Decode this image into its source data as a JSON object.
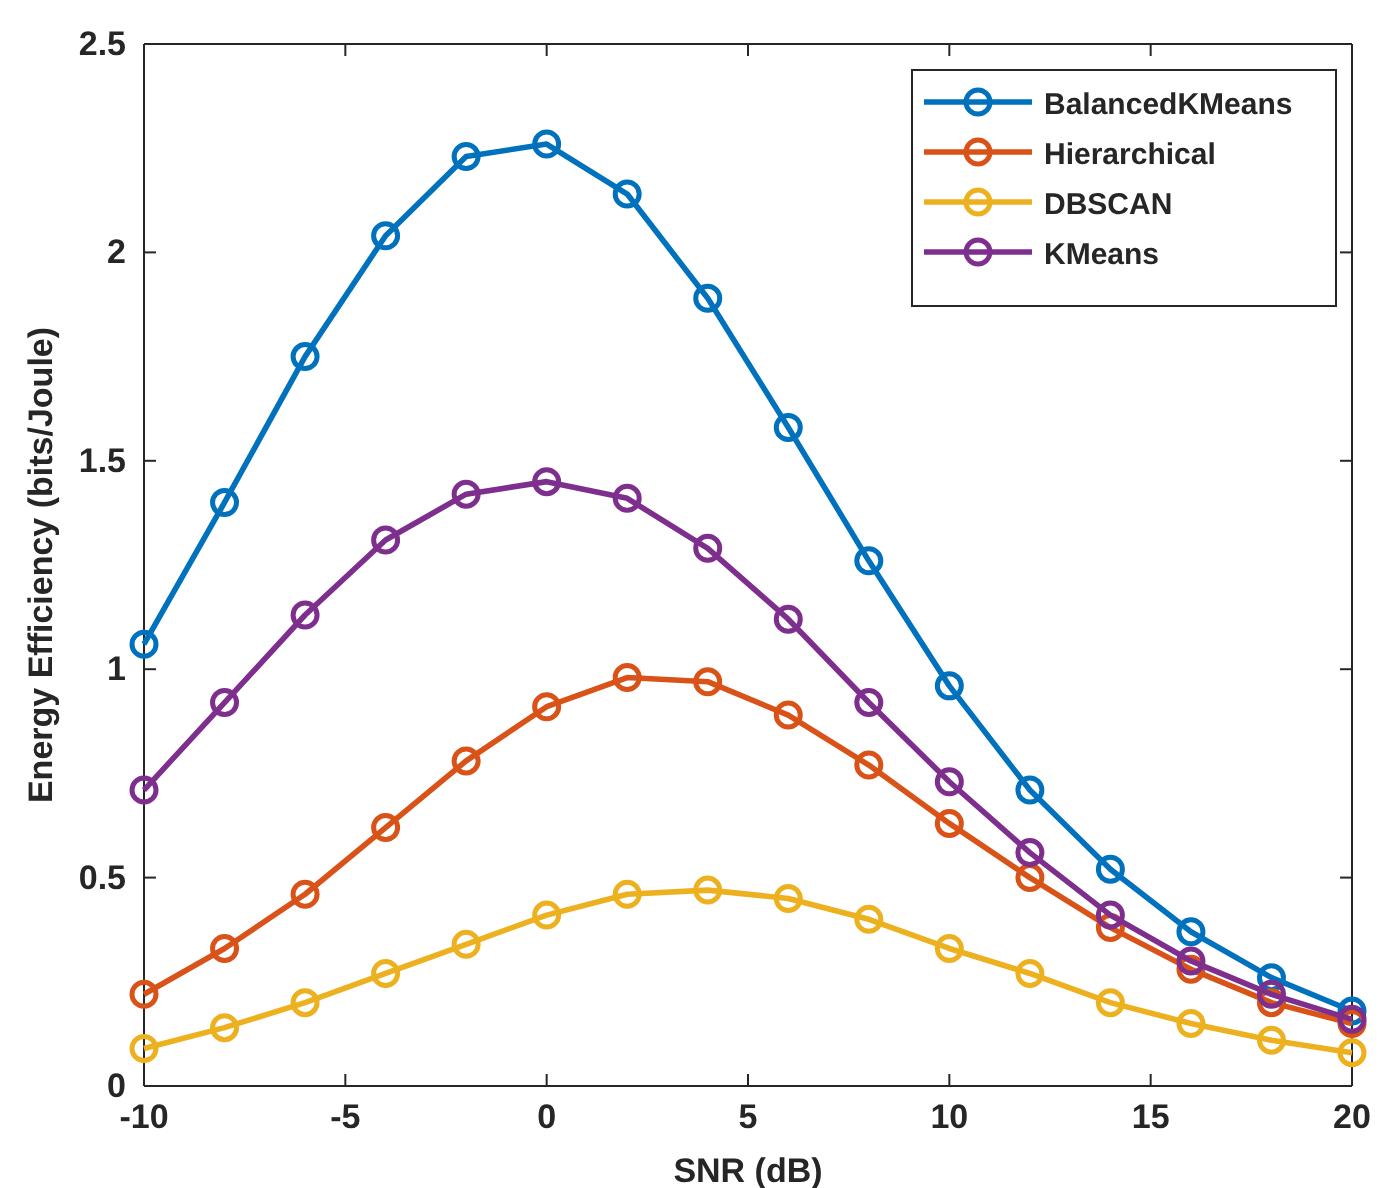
{
  "chart_data": {
    "type": "line",
    "xlabel": "SNR (dB)",
    "ylabel": "Energy Efficiency (bits/Joule)",
    "x": [
      -10,
      -8,
      -6,
      -4,
      -2,
      0,
      2,
      4,
      6,
      8,
      10,
      12,
      14,
      16,
      18,
      20
    ],
    "series": [
      {
        "name": "BalancedKMeans",
        "color": "#0072bd",
        "values": [
          1.06,
          1.4,
          1.75,
          2.04,
          2.23,
          2.26,
          2.14,
          1.89,
          1.58,
          1.26,
          0.96,
          0.71,
          0.52,
          0.37,
          0.26,
          0.18
        ]
      },
      {
        "name": "Hierarchical",
        "color": "#d95319",
        "values": [
          0.22,
          0.33,
          0.46,
          0.62,
          0.78,
          0.91,
          0.98,
          0.97,
          0.89,
          0.77,
          0.63,
          0.5,
          0.38,
          0.28,
          0.2,
          0.15
        ]
      },
      {
        "name": "DBSCAN",
        "color": "#edb120",
        "values": [
          0.09,
          0.14,
          0.2,
          0.27,
          0.34,
          0.41,
          0.46,
          0.47,
          0.45,
          0.4,
          0.33,
          0.27,
          0.2,
          0.15,
          0.11,
          0.08
        ]
      },
      {
        "name": "KMeans",
        "color": "#7e2f8e",
        "values": [
          0.71,
          0.92,
          1.13,
          1.31,
          1.42,
          1.45,
          1.41,
          1.29,
          1.12,
          0.92,
          0.73,
          0.56,
          0.41,
          0.3,
          0.22,
          0.16
        ]
      }
    ],
    "xlim": [
      -10,
      20
    ],
    "xticks": [
      -10,
      -5,
      0,
      5,
      10,
      15,
      20
    ],
    "ylim": [
      0,
      2.5
    ],
    "yticks": [
      0,
      0.5,
      1,
      1.5,
      2,
      2.5
    ],
    "legend": "top right",
    "marker": "circle",
    "line_style": "solid",
    "grid": false
  }
}
